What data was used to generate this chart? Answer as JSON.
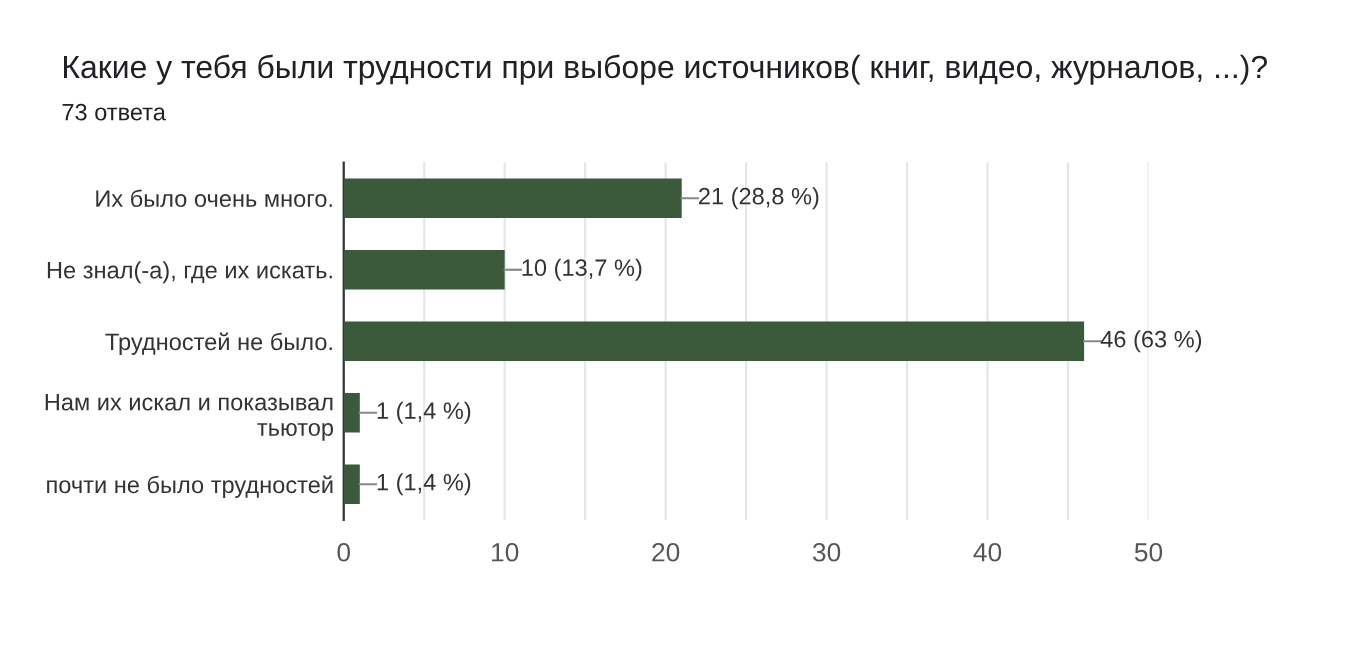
{
  "chart_data": {
    "type": "bar",
    "orientation": "horizontal",
    "title": "Какие у тебя были трудности при выборе источников( книг, видео, журналов, ...)?",
    "subtitle": "73 ответа",
    "categories": [
      "Их было очень много.",
      "Не знал(-а), где их искать.",
      "Трудностей не было.",
      "Нам их искал и показывал\nтьютор",
      "почти не было трудностей"
    ],
    "values": [
      21,
      10,
      46,
      1,
      1
    ],
    "value_labels": [
      "21 (28,8 %)",
      "10 (13,7 %)",
      "46 (63 %)",
      "1 (1,4 %)",
      "1 (1,4 %)"
    ],
    "color": "#3b5a3b",
    "xlim": [
      0,
      50
    ],
    "xticks": [
      0,
      {
        "value": 5,
        "label": null
      },
      10,
      {
        "value": 15,
        "label": null
      },
      20,
      {
        "value": 25,
        "label": null
      },
      30,
      {
        "value": 35,
        "label": null
      },
      40,
      {
        "value": 45,
        "label": null
      },
      50
    ],
    "grid": "x",
    "legend": false
  }
}
